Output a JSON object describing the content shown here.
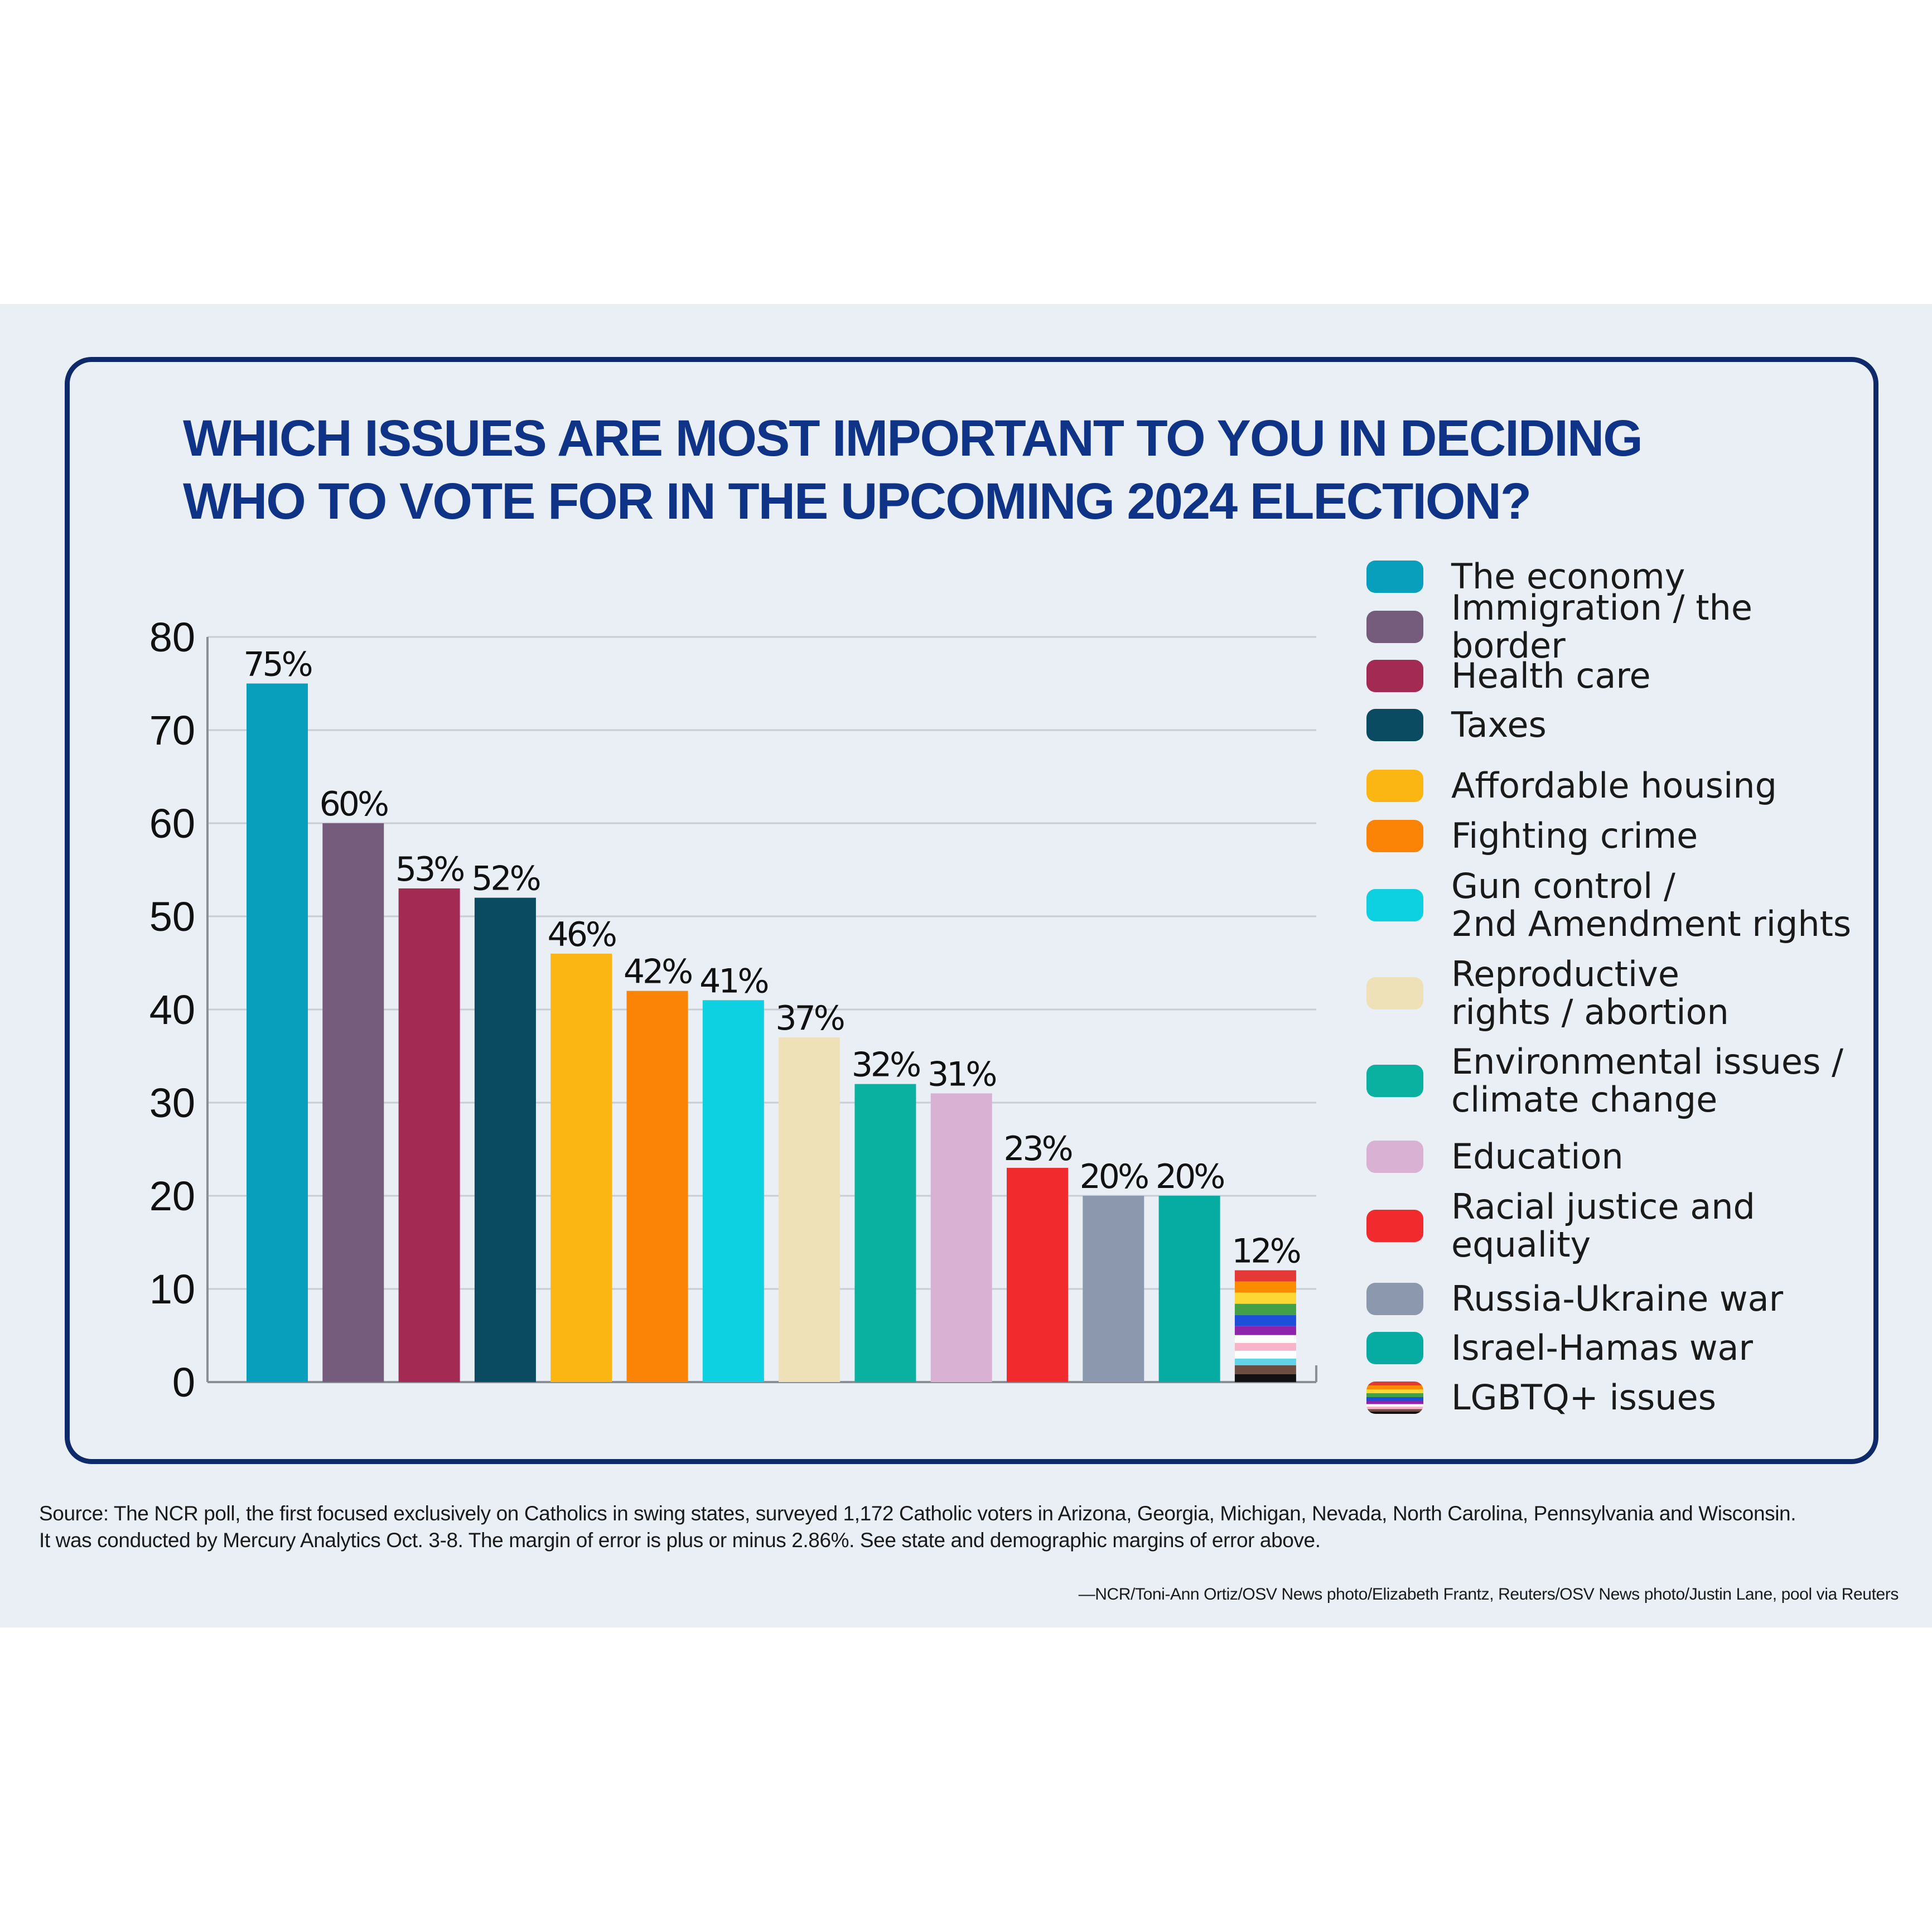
{
  "title": {
    "line1": "WHICH ISSUES ARE MOST IMPORTANT TO YOU IN DECIDING",
    "line2": "WHO TO VOTE FOR IN THE UPCOMING 2024 ELECTION?"
  },
  "chart_data": {
    "type": "bar",
    "title": "WHICH ISSUES ARE MOST IMPORTANT TO YOU IN DECIDING WHO TO VOTE FOR IN THE UPCOMING 2024 ELECTION?",
    "categories": [
      "The economy",
      "Immigration / the border",
      "Health care",
      "Taxes",
      "Affordable housing",
      "Fighting crime",
      "Gun control /\n2nd Amendment rights",
      "Reproductive\nrights / abortion",
      "Environmental issues /\nclimate change",
      "Education",
      "Racial justice and\nequality",
      "Russia-Ukraine war",
      "Israel-Hamas war",
      "LGBTQ+ issues"
    ],
    "values": [
      75,
      60,
      53,
      52,
      46,
      42,
      41,
      37,
      32,
      31,
      23,
      20,
      20,
      12
    ],
    "data_labels": [
      "75%",
      "60%",
      "53%",
      "52%",
      "46%",
      "42%",
      "41%",
      "37%",
      "32%",
      "31%",
      "23%",
      "20%",
      "20%",
      "12%"
    ],
    "colors": [
      "#079fbb",
      "#755b7c",
      "#a32a52",
      "#0b4b62",
      "#fcb614",
      "#fb8407",
      "#0dd1e0",
      "#efe1b7",
      "#0ab0a0",
      "#d8b1d3",
      "#f12a2e",
      "#8b98ad",
      "#06aca2",
      "rainbow"
    ],
    "ylim": [
      0,
      80
    ],
    "yticks": [
      0,
      10,
      20,
      30,
      40,
      50,
      60,
      70,
      80
    ],
    "xlabel": "",
    "ylabel": "",
    "grid": true,
    "legend": "right"
  },
  "footer": {
    "source_line1": "Source: The NCR poll, the first focused exclusively on Catholics in swing states, surveyed 1,172 Catholic voters in Arizona, Georgia, Michigan, Nevada, North Carolina, Pennsylvania and Wisconsin.",
    "source_line2": "It was conducted by Mercury Analytics Oct. 3-8. The margin of error is plus or minus 2.86%. See state and demographic margins of error above.",
    "credit": "—NCR/Toni-Ann Ortiz/OSV News photo/Elizabeth Frantz, Reuters/OSV News photo/Justin Lane, pool via Reuters"
  }
}
